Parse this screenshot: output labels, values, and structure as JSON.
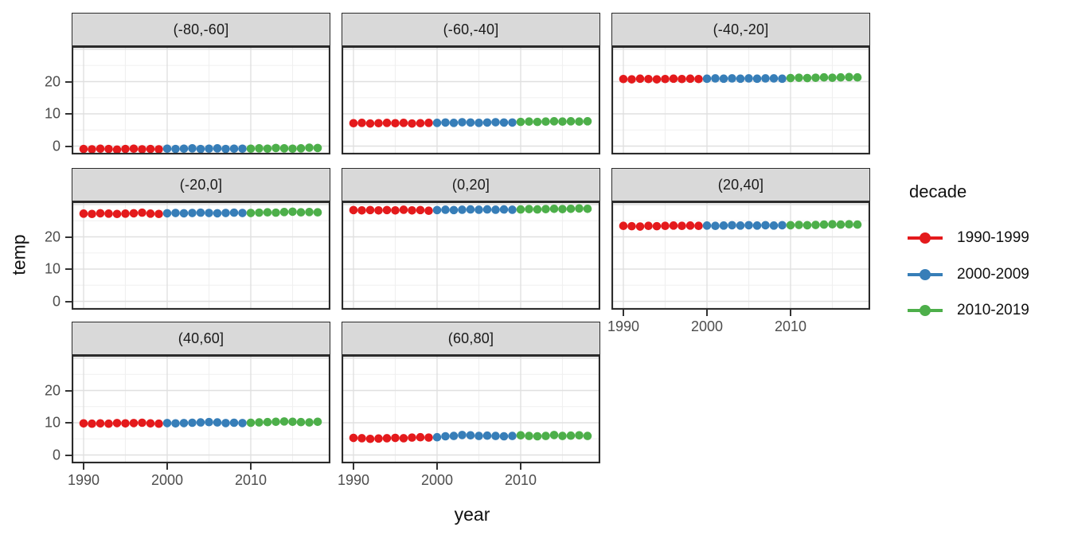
{
  "figure": {
    "xlabel": "year",
    "ylabel": "temp",
    "legend": {
      "title": "decade",
      "entries": [
        {
          "label": "1990-1999",
          "color": "#E41A1C"
        },
        {
          "label": "2000-2009",
          "color": "#377EB8"
        },
        {
          "label": "2010-2019",
          "color": "#4DAF4A"
        }
      ]
    }
  },
  "chart_data": {
    "type": "scatter",
    "faceted": true,
    "facet_labels": [
      "(-80,-60]",
      "(-60,-40]",
      "(-40,-20]",
      "(-20,0]",
      "(0,20]",
      "(20,40]",
      "(40,60]",
      "(60,80]"
    ],
    "title": "",
    "xlabel": "year",
    "ylabel": "temp",
    "x_ticks": [
      1990,
      2000,
      2010
    ],
    "x_minor": [
      1995,
      2005,
      2015
    ],
    "y_ticks": [
      0,
      10,
      20
    ],
    "y_major": [
      0,
      10,
      20,
      30
    ],
    "y_minor": [
      5,
      15,
      25
    ],
    "xlim": [
      1988.6,
      2019.5
    ],
    "ylim": [
      -2.6,
      31.0
    ],
    "grid": true,
    "legend_position": "right",
    "series_legend": {
      "1990-1999": "#E41A1C",
      "2000-2009": "#377EB8",
      "2010-2019": "#4DAF4A"
    },
    "x": [
      1990,
      1991,
      1992,
      1993,
      1994,
      1995,
      1996,
      1997,
      1998,
      1999,
      2000,
      2001,
      2002,
      2003,
      2004,
      2005,
      2006,
      2007,
      2008,
      2009,
      2010,
      2011,
      2012,
      2013,
      2014,
      2015,
      2016,
      2017,
      2018
    ],
    "facets": [
      {
        "label": "(-80,-60]",
        "values": [
          -0.9,
          -1.0,
          -0.8,
          -0.9,
          -1.1,
          -0.9,
          -0.8,
          -1.0,
          -0.9,
          -1.0,
          -0.8,
          -0.9,
          -0.8,
          -0.7,
          -0.9,
          -0.8,
          -0.7,
          -0.9,
          -0.8,
          -0.8,
          -0.8,
          -0.7,
          -0.8,
          -0.6,
          -0.7,
          -0.8,
          -0.7,
          -0.5,
          -0.6
        ]
      },
      {
        "label": "(-60,-40]",
        "values": [
          7.1,
          7.2,
          7.0,
          7.1,
          7.2,
          7.1,
          7.2,
          7.0,
          7.1,
          7.2,
          7.2,
          7.3,
          7.2,
          7.4,
          7.3,
          7.2,
          7.3,
          7.4,
          7.3,
          7.3,
          7.5,
          7.6,
          7.5,
          7.6,
          7.7,
          7.6,
          7.7,
          7.6,
          7.7
        ]
      },
      {
        "label": "(-40,-20]",
        "values": [
          20.8,
          20.7,
          20.9,
          20.8,
          20.7,
          20.8,
          20.9,
          20.8,
          20.9,
          20.8,
          20.9,
          21.0,
          20.9,
          21.0,
          20.9,
          21.0,
          20.9,
          21.0,
          21.0,
          20.9,
          21.1,
          21.2,
          21.1,
          21.2,
          21.3,
          21.2,
          21.3,
          21.4,
          21.3
        ]
      },
      {
        "label": "(-20,0]",
        "values": [
          27.2,
          27.1,
          27.3,
          27.2,
          27.1,
          27.2,
          27.3,
          27.5,
          27.2,
          27.1,
          27.3,
          27.4,
          27.3,
          27.4,
          27.5,
          27.4,
          27.3,
          27.4,
          27.5,
          27.4,
          27.4,
          27.5,
          27.6,
          27.5,
          27.7,
          27.8,
          27.6,
          27.7,
          27.6
        ]
      },
      {
        "label": "(0,20]",
        "values": [
          28.3,
          28.2,
          28.3,
          28.2,
          28.3,
          28.2,
          28.4,
          28.2,
          28.3,
          28.1,
          28.3,
          28.4,
          28.3,
          28.4,
          28.5,
          28.4,
          28.5,
          28.4,
          28.5,
          28.4,
          28.5,
          28.6,
          28.5,
          28.6,
          28.7,
          28.6,
          28.7,
          28.8,
          28.7
        ]
      },
      {
        "label": "(20,40]",
        "values": [
          23.4,
          23.3,
          23.2,
          23.4,
          23.3,
          23.4,
          23.5,
          23.4,
          23.5,
          23.4,
          23.5,
          23.4,
          23.5,
          23.6,
          23.5,
          23.6,
          23.5,
          23.6,
          23.5,
          23.6,
          23.6,
          23.7,
          23.6,
          23.7,
          23.8,
          23.9,
          23.8,
          23.9,
          23.8
        ]
      },
      {
        "label": "(40,60]",
        "values": [
          9.8,
          9.7,
          9.8,
          9.7,
          9.9,
          9.8,
          9.9,
          10.0,
          9.8,
          9.7,
          9.9,
          9.8,
          9.9,
          10.0,
          10.1,
          10.2,
          10.1,
          9.9,
          10.0,
          9.9,
          10.0,
          10.1,
          10.2,
          10.3,
          10.4,
          10.3,
          10.2,
          10.1,
          10.3
        ]
      },
      {
        "label": "(60,80]",
        "values": [
          5.3,
          5.2,
          5.0,
          5.1,
          5.2,
          5.3,
          5.2,
          5.4,
          5.5,
          5.4,
          5.5,
          5.8,
          5.9,
          6.2,
          6.1,
          5.9,
          6.0,
          5.9,
          5.8,
          5.9,
          6.1,
          5.9,
          5.8,
          5.9,
          6.2,
          5.9,
          6.0,
          6.1,
          5.9
        ]
      }
    ]
  },
  "colors": {
    "strip_fill": "#d9d9d9",
    "panel_border": "#2b2b2b",
    "grid_major": "#e0e0e0",
    "grid_minor": "#f0f0f0",
    "axis_text": "#4d4d4d"
  }
}
